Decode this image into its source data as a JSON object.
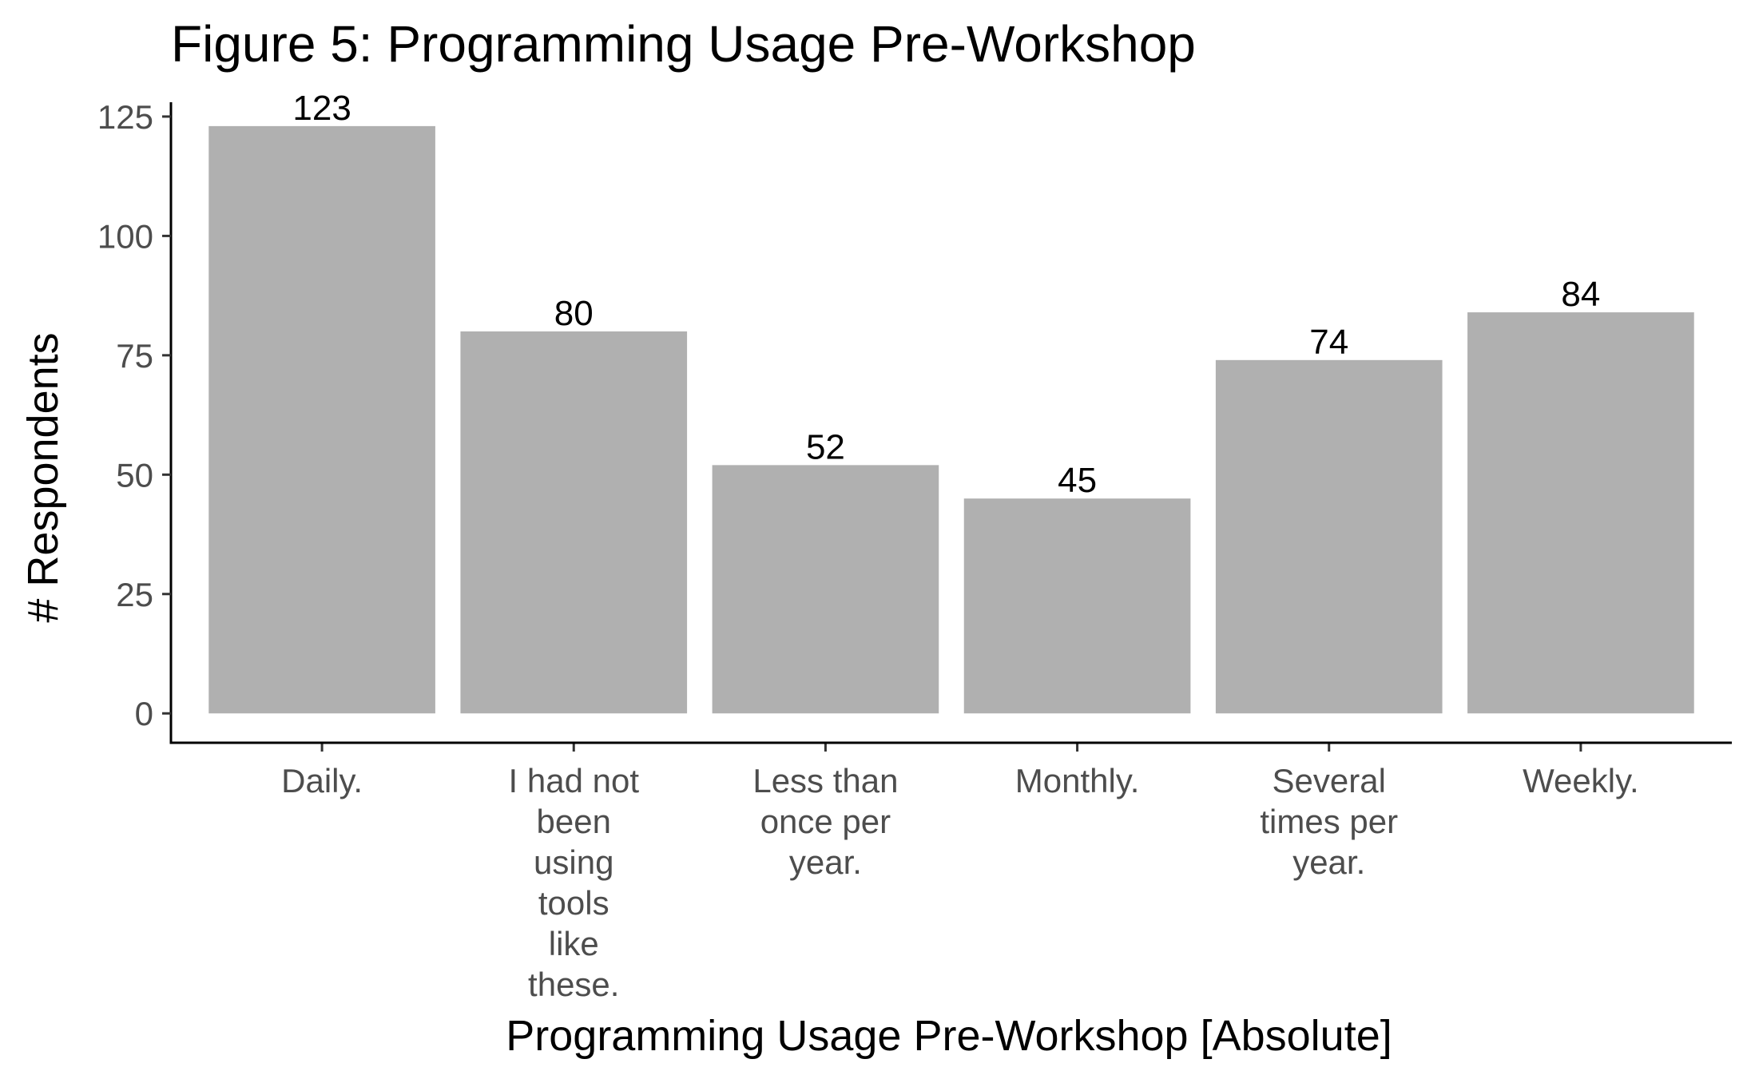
{
  "chart_data": {
    "type": "bar",
    "title": "Figure 5: Programming Usage Pre-Workshop",
    "xlabel": "Programming Usage Pre-Workshop [Absolute]",
    "ylabel": "# Respondents",
    "categories": [
      "Daily.",
      "I had not been using tools like these.",
      "Less than once per year.",
      "Monthly.",
      "Several times per year.",
      "Weekly."
    ],
    "category_lines": [
      [
        "Daily."
      ],
      [
        "I had not",
        "been",
        "using",
        "tools",
        "like",
        "these."
      ],
      [
        "Less than",
        "once per",
        "year."
      ],
      [
        "Monthly."
      ],
      [
        "Several",
        "times per",
        "year."
      ],
      [
        "Weekly."
      ]
    ],
    "values": [
      123,
      80,
      52,
      45,
      74,
      84
    ],
    "data_labels": [
      "123",
      "80",
      "52",
      "45",
      "74",
      "84"
    ],
    "yticks": [
      0,
      25,
      50,
      75,
      100,
      125
    ],
    "ylim": [
      -6.15,
      128
    ],
    "grid": false,
    "legend": "none",
    "bar_color": "#b0b0b0"
  }
}
